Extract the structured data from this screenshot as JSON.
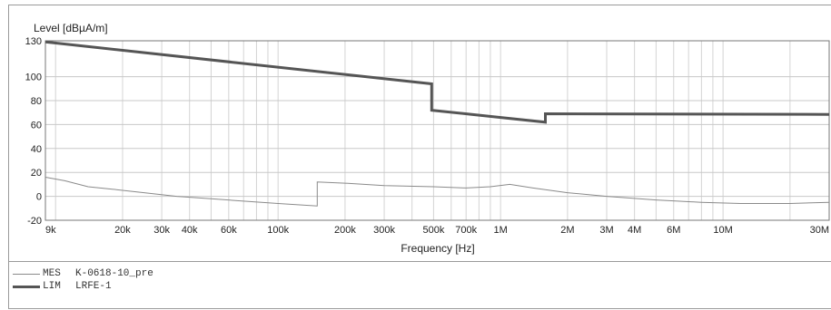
{
  "chart_data": {
    "type": "line",
    "ylabel": "Level [dBµA/m]",
    "xlabel": "Frequency [Hz]",
    "xscale": "log",
    "xlim": [
      9000,
      30000000
    ],
    "ylim": [
      -20,
      130
    ],
    "grid": true,
    "y_ticks": [
      {
        "value": 130,
        "label": "130"
      },
      {
        "value": 100,
        "label": "100"
      },
      {
        "value": 80,
        "label": "80"
      },
      {
        "value": 60,
        "label": "60"
      },
      {
        "value": 40,
        "label": "40"
      },
      {
        "value": 20,
        "label": "20"
      },
      {
        "value": 0,
        "label": "0"
      },
      {
        "value": -20,
        "label": "-20"
      }
    ],
    "x_ticks": [
      {
        "value": 9000,
        "label": "9k"
      },
      {
        "value": 20000,
        "label": "20k"
      },
      {
        "value": 30000,
        "label": "30k"
      },
      {
        "value": 40000,
        "label": "40k"
      },
      {
        "value": 60000,
        "label": "60k"
      },
      {
        "value": 100000,
        "label": "100k"
      },
      {
        "value": 200000,
        "label": "200k"
      },
      {
        "value": 300000,
        "label": "300k"
      },
      {
        "value": 500000,
        "label": "500k"
      },
      {
        "value": 700000,
        "label": "700k"
      },
      {
        "value": 1000000,
        "label": "1M"
      },
      {
        "value": 2000000,
        "label": "2M"
      },
      {
        "value": 3000000,
        "label": "3M"
      },
      {
        "value": 4000000,
        "label": "4M"
      },
      {
        "value": 6000000,
        "label": "6M"
      },
      {
        "value": 10000000,
        "label": "10M"
      },
      {
        "value": 30000000,
        "label": "30M"
      }
    ],
    "series": [
      {
        "key": "MES",
        "name": "K-0618-10_pre",
        "color": "#8a8a8a",
        "points": [
          [
            9000,
            16
          ],
          [
            11000,
            13
          ],
          [
            14000,
            8
          ],
          [
            18000,
            6
          ],
          [
            25000,
            3
          ],
          [
            35000,
            0
          ],
          [
            50000,
            -2
          ],
          [
            70000,
            -4
          ],
          [
            100000,
            -6
          ],
          [
            150000,
            -8
          ],
          [
            150000,
            12
          ],
          [
            200000,
            11
          ],
          [
            300000,
            9
          ],
          [
            500000,
            8
          ],
          [
            700000,
            7
          ],
          [
            900000,
            8
          ],
          [
            1100000,
            10
          ],
          [
            1400000,
            7
          ],
          [
            2000000,
            3
          ],
          [
            3000000,
            0
          ],
          [
            5000000,
            -3
          ],
          [
            8000000,
            -5
          ],
          [
            12000000,
            -6
          ],
          [
            20000000,
            -6
          ],
          [
            30000000,
            -5
          ]
        ]
      },
      {
        "key": "LIM",
        "name": "LRFE-1",
        "color": "#555555",
        "points": [
          [
            9000,
            129
          ],
          [
            490000,
            94
          ],
          [
            490000,
            72
          ],
          [
            1590000,
            62
          ],
          [
            1590000,
            69
          ],
          [
            30000000,
            68.5
          ]
        ]
      }
    ]
  }
}
